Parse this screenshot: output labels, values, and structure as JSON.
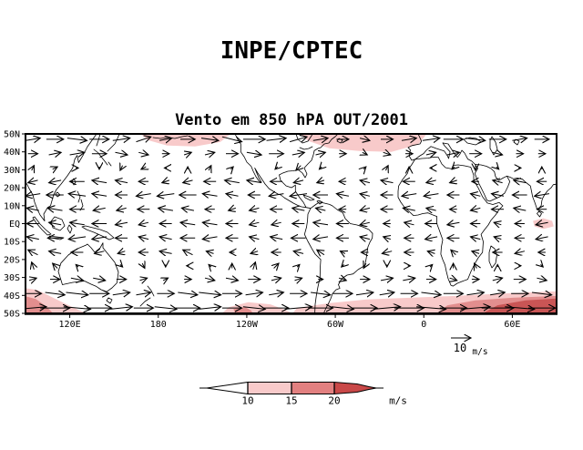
{
  "page": {
    "background": "#ffffff"
  },
  "chart_data": {
    "type": "vector-field-map",
    "title": "INPE/CPTEC",
    "subtitle": "Vento em 850 hPA OUT/2001",
    "variable": "Vento (wind) at 850 hPa",
    "period": "OUT/2001",
    "projection": "equirectangular",
    "grid": false,
    "lon_axis": {
      "start_deg_east": 90,
      "span_deg": 360,
      "ticks": [
        {
          "label": "120E",
          "lon": 120
        },
        {
          "label": "180",
          "lon": 180
        },
        {
          "label": "120W",
          "lon": 240
        },
        {
          "label": "60W",
          "lon": 300
        },
        {
          "label": "0",
          "lon": 360
        },
        {
          "label": "60E",
          "lon": 420
        }
      ]
    },
    "lat_axis": {
      "min": -50,
      "max": 50,
      "ticks": [
        {
          "label": "50N",
          "lat": 50
        },
        {
          "label": "40N",
          "lat": 40
        },
        {
          "label": "30N",
          "lat": 30
        },
        {
          "label": "20N",
          "lat": 20
        },
        {
          "label": "10N",
          "lat": 10
        },
        {
          "label": "EQ",
          "lat": 0
        },
        {
          "label": "10S",
          "lat": -10
        },
        {
          "label": "20S",
          "lat": -20
        },
        {
          "label": "30S",
          "lat": -30
        },
        {
          "label": "40S",
          "lat": -40
        },
        {
          "label": "50S",
          "lat": -50
        }
      ]
    },
    "reference_vector": {
      "value_ms": 10,
      "label": "10",
      "units_label": "m/s"
    },
    "colorbar": {
      "tick_labels": [
        "10",
        "15",
        "20"
      ],
      "units_label": "m/s",
      "thresholds_ms": [
        10,
        15,
        20
      ],
      "segment_colors": [
        "#ffffff",
        "#f8caca",
        "#e28080",
        "#c94848"
      ]
    },
    "shading_levels": {
      "1": "#f8caca",
      "2": "#e28e8e",
      "3": "#c95555"
    },
    "shaded_regions": [
      {
        "name": "north-pacific",
        "level": 1,
        "points": [
          [
            168,
            50
          ],
          [
            229,
            50
          ],
          [
            222,
            45.5
          ],
          [
            205,
            43
          ],
          [
            186,
            43.5
          ],
          [
            173,
            46.5
          ]
        ]
      },
      {
        "name": "north-america-atlantic",
        "level": 1,
        "points": [
          [
            276,
            50
          ],
          [
            362,
            50
          ],
          [
            356,
            44
          ],
          [
            338,
            40
          ],
          [
            316,
            40.5
          ],
          [
            296,
            42
          ],
          [
            282,
            46
          ]
        ]
      },
      {
        "name": "south-india-ocean-patch",
        "level": 1,
        "points": [
          [
            434,
            1.5
          ],
          [
            441,
            3
          ],
          [
            447,
            1.5
          ],
          [
            448,
            -1.5
          ],
          [
            441,
            -3
          ],
          [
            435,
            -1.5
          ]
        ]
      },
      {
        "name": "south-of-australia",
        "level": 1,
        "points": [
          [
            90,
            -36
          ],
          [
            98,
            -37
          ],
          [
            108,
            -41
          ],
          [
            118,
            -45
          ],
          [
            127,
            -48.5
          ],
          [
            132,
            -50
          ],
          [
            90,
            -50
          ]
        ]
      },
      {
        "name": "south-of-australia-core",
        "level": 2,
        "points": [
          [
            90,
            -40.5
          ],
          [
            97,
            -42
          ],
          [
            103,
            -45.5
          ],
          [
            107,
            -48.5
          ],
          [
            108.5,
            -50
          ],
          [
            90,
            -50
          ]
        ]
      },
      {
        "name": "southeast-pacific",
        "level": 1,
        "points": [
          [
            223,
            -50
          ],
          [
            228,
            -46.5
          ],
          [
            241,
            -43.8
          ],
          [
            256,
            -45
          ],
          [
            267,
            -48.3
          ],
          [
            271,
            -50
          ]
        ]
      },
      {
        "name": "southeast-pacific-core",
        "level": 2,
        "points": [
          [
            231,
            -47.5
          ],
          [
            239,
            -46.5
          ],
          [
            243,
            -48.5
          ],
          [
            244,
            -50
          ],
          [
            232,
            -50
          ]
        ]
      },
      {
        "name": "south-atlantic-indian-band",
        "level": 1,
        "points": [
          [
            271,
            -50
          ],
          [
            274,
            -47
          ],
          [
            296,
            -44.3
          ],
          [
            321,
            -42.3
          ],
          [
            352,
            -41.2
          ],
          [
            383,
            -40.2
          ],
          [
            420,
            -38.7
          ],
          [
            450,
            -37.7
          ],
          [
            450,
            -50
          ]
        ]
      },
      {
        "name": "south-indian-medium",
        "level": 2,
        "points": [
          [
            369,
            -50
          ],
          [
            376,
            -45.5
          ],
          [
            395,
            -42.8
          ],
          [
            420,
            -41.3
          ],
          [
            450,
            -40.3
          ],
          [
            450,
            -50
          ]
        ]
      },
      {
        "name": "south-indian-core",
        "level": 3,
        "points": [
          [
            400,
            -50
          ],
          [
            410,
            -45.5
          ],
          [
            429,
            -42.8
          ],
          [
            450,
            -41.8
          ],
          [
            450,
            -50
          ]
        ]
      }
    ],
    "wind_grid": {
      "units": "m/s",
      "lons_deg_east": [
        95,
        110,
        125,
        140,
        155,
        170,
        185,
        200,
        215,
        230,
        245,
        260,
        275,
        290,
        305,
        320,
        335,
        350,
        365,
        380,
        395,
        410,
        425,
        440
      ],
      "lats_deg": [
        47,
        39,
        31,
        23.5,
        16,
        8,
        0,
        -8,
        -16,
        -23.5,
        -31,
        -39,
        -47
      ],
      "u": [
        [
          6,
          7,
          8,
          8,
          7,
          6,
          5,
          6,
          7,
          8,
          9,
          8,
          7,
          6,
          5,
          4,
          5,
          6,
          7,
          8,
          8,
          7,
          6,
          6
        ],
        [
          4,
          5,
          6,
          6,
          5,
          4,
          3,
          3,
          4,
          5,
          6,
          6,
          5,
          4,
          3,
          2,
          3,
          3,
          4,
          5,
          5,
          4,
          3,
          3
        ],
        [
          1,
          2,
          1,
          0,
          -1,
          -2,
          -1,
          0,
          1,
          1,
          0,
          -1,
          -2,
          -1,
          0,
          1,
          1,
          0,
          -1,
          -1,
          0,
          1,
          1,
          0
        ],
        [
          -4,
          -5,
          -6,
          -6,
          -5,
          -4,
          -3,
          -4,
          -5,
          -6,
          -6,
          -5,
          -4,
          -3,
          -3,
          -4,
          -5,
          -5,
          -4,
          -3,
          -3,
          -4,
          -5,
          -4
        ],
        [
          -6,
          -7,
          -7,
          -6,
          -5,
          -6,
          -7,
          -7,
          -6,
          -5,
          -5,
          -6,
          -7,
          -6,
          -5,
          -4,
          -5,
          -6,
          -6,
          -5,
          -4,
          -5,
          -6,
          -6
        ],
        [
          -5,
          -6,
          -6,
          -5,
          -4,
          -5,
          -6,
          -5,
          -4,
          -3,
          -4,
          -5,
          -5,
          -4,
          -3,
          -4,
          -5,
          -5,
          -4,
          -3,
          -4,
          -5,
          -5,
          -4
        ],
        [
          -5,
          -5,
          -6,
          -6,
          -5,
          -4,
          -5,
          -6,
          -6,
          -5,
          -4,
          -4,
          -5,
          -6,
          -5,
          -4,
          -3,
          -4,
          -5,
          -5,
          -4,
          -3,
          -4,
          -5
        ],
        [
          -5,
          -6,
          -7,
          -6,
          -5,
          -4,
          -5,
          -6,
          -6,
          -5,
          -4,
          -5,
          -6,
          -6,
          -5,
          -4,
          -3,
          -4,
          -5,
          -5,
          -4,
          -3,
          -4,
          -5
        ],
        [
          -4,
          -5,
          -5,
          -4,
          -3,
          -4,
          -5,
          -4,
          -3,
          -2,
          -3,
          -4,
          -4,
          -3,
          -2,
          -3,
          -4,
          -4,
          -3,
          -2,
          -3,
          -4,
          -4,
          -3
        ],
        [
          -1,
          -2,
          -1,
          0,
          1,
          1,
          0,
          -1,
          -1,
          0,
          1,
          2,
          1,
          0,
          -1,
          -1,
          0,
          1,
          1,
          0,
          -1,
          0,
          1,
          1
        ],
        [
          3,
          4,
          5,
          5,
          4,
          3,
          2,
          3,
          4,
          5,
          5,
          4,
          3,
          2,
          3,
          4,
          5,
          5,
          4,
          3,
          3,
          4,
          5,
          4
        ],
        [
          7,
          8,
          9,
          8,
          7,
          6,
          7,
          8,
          9,
          8,
          7,
          6,
          7,
          8,
          8,
          7,
          6,
          7,
          8,
          8,
          7,
          6,
          7,
          8
        ],
        [
          11,
          12,
          11,
          10,
          9,
          8,
          9,
          10,
          9,
          8,
          9,
          10,
          11,
          10,
          9,
          10,
          11,
          12,
          12,
          11,
          12,
          13,
          12,
          11
        ]
      ],
      "v": [
        [
          1,
          0,
          -1,
          0,
          1,
          2,
          1,
          0,
          -1,
          -2,
          0,
          1,
          2,
          1,
          0,
          -1,
          0,
          1,
          1,
          0,
          -1,
          0,
          1,
          0
        ],
        [
          0,
          1,
          1,
          0,
          -1,
          -1,
          0,
          1,
          1,
          0,
          -1,
          0,
          1,
          1,
          0,
          -1,
          -1,
          0,
          1,
          1,
          0,
          -1,
          0,
          0
        ],
        [
          2,
          1,
          0,
          -1,
          -2,
          -1,
          0,
          1,
          2,
          1,
          0,
          -1,
          -2,
          -1,
          0,
          1,
          2,
          1,
          0,
          -1,
          -2,
          -1,
          0,
          1
        ],
        [
          -1,
          -1,
          0,
          1,
          1,
          0,
          -1,
          -1,
          0,
          1,
          1,
          0,
          -1,
          -1,
          0,
          1,
          1,
          0,
          -1,
          -1,
          0,
          1,
          1,
          0
        ],
        [
          -1,
          0,
          1,
          1,
          0,
          -1,
          -1,
          0,
          1,
          1,
          0,
          -1,
          -1,
          0,
          1,
          1,
          0,
          -1,
          -1,
          0,
          1,
          1,
          0,
          -1
        ],
        [
          1,
          1,
          0,
          -1,
          -1,
          0,
          1,
          1,
          0,
          -1,
          -1,
          0,
          1,
          1,
          0,
          -1,
          0,
          1,
          1,
          0,
          -1,
          0,
          1,
          0
        ],
        [
          0,
          1,
          1,
          0,
          -1,
          -1,
          0,
          1,
          1,
          0,
          -1,
          -1,
          0,
          1,
          0,
          -1,
          0,
          1,
          0,
          -1,
          0,
          1,
          0,
          -1
        ],
        [
          1,
          0,
          -1,
          -1,
          0,
          1,
          1,
          0,
          -1,
          0,
          1,
          1,
          0,
          -1,
          0,
          1,
          1,
          0,
          -1,
          0,
          1,
          1,
          0,
          -1
        ],
        [
          2,
          1,
          0,
          -1,
          -1,
          0,
          1,
          2,
          1,
          0,
          -1,
          0,
          1,
          2,
          1,
          0,
          -1,
          0,
          1,
          2,
          1,
          0,
          -1,
          0
        ],
        [
          3,
          2,
          1,
          0,
          -1,
          -2,
          -1,
          0,
          1,
          2,
          3,
          2,
          1,
          0,
          -1,
          -2,
          -1,
          0,
          1,
          2,
          2,
          1,
          0,
          -1
        ],
        [
          1,
          0,
          -1,
          -1,
          0,
          1,
          1,
          0,
          -1,
          -1,
          0,
          1,
          1,
          0,
          -1,
          0,
          1,
          1,
          0,
          -1,
          0,
          1,
          0,
          -1
        ],
        [
          0,
          -1,
          -1,
          0,
          1,
          1,
          0,
          -1,
          -1,
          0,
          1,
          1,
          0,
          -1,
          0,
          1,
          1,
          0,
          -1,
          0,
          1,
          1,
          0,
          -1
        ],
        [
          1,
          0,
          -1,
          0,
          1,
          0,
          -1,
          0,
          1,
          0,
          -1,
          0,
          1,
          0,
          -1,
          0,
          1,
          0,
          -1,
          0,
          1,
          0,
          -1,
          0
        ]
      ]
    }
  }
}
